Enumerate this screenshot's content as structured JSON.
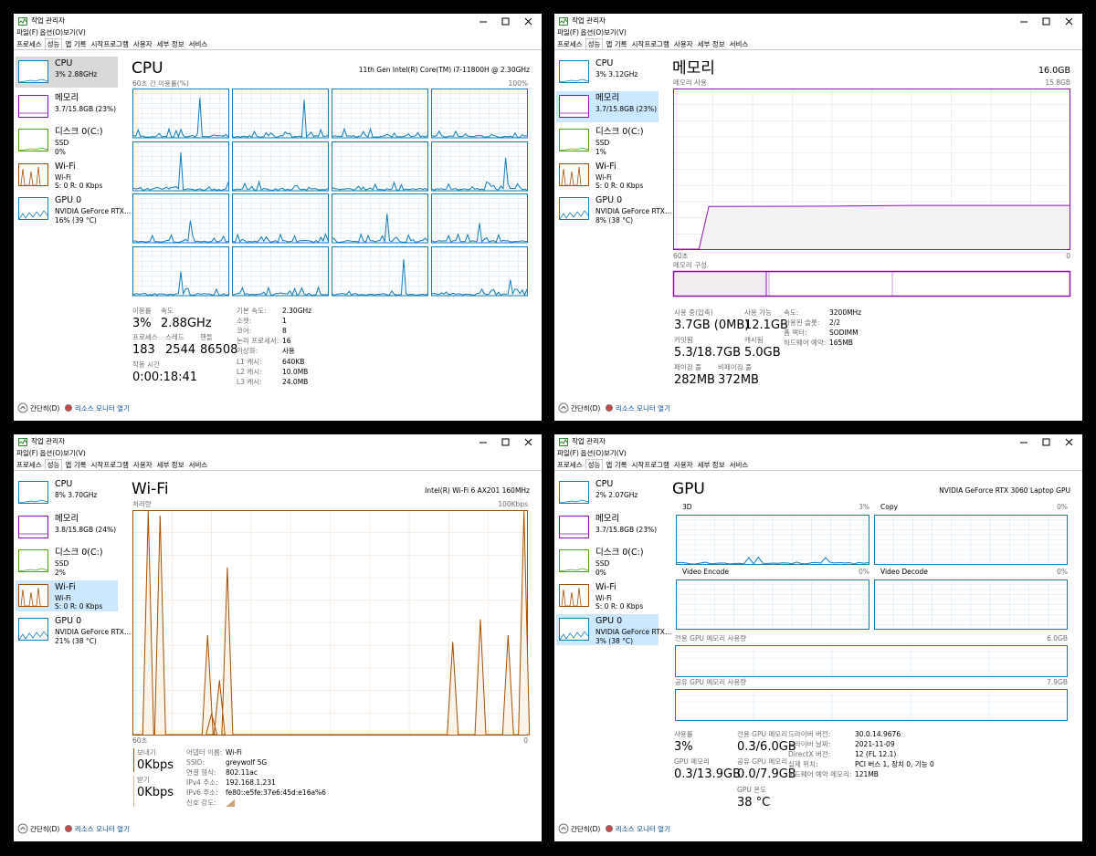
{
  "common": {
    "title": "작업 관리자",
    "menu": [
      "파일(F)",
      "옵션(O)",
      "보기(V)"
    ],
    "tabs": [
      "프로세스",
      "성능",
      "앱 기록",
      "시작프로그램",
      "사용자",
      "세부 정보",
      "서비스"
    ],
    "active_tab": 1,
    "footer": [
      "간단히(D)",
      "리소스 모니터 열기"
    ]
  },
  "windows": [
    {
      "selected": 0,
      "sidebar": [
        {
          "name": "CPU",
          "info": [
            "3% 2.88GHz"
          ]
        },
        {
          "name": "메모리",
          "info": [
            "3.7/15.8GB (23%)"
          ]
        },
        {
          "name": "디스크 0(C:)",
          "info": [
            "SSD",
            "0%"
          ]
        },
        {
          "name": "Wi-Fi",
          "info": [
            "Wi-Fi",
            "S: 0 R: 0 Kbps"
          ]
        },
        {
          "name": "GPU 0",
          "info": [
            "NVIDIA GeForce RTX...",
            "16% (39 °C)"
          ]
        }
      ],
      "heading": "CPU",
      "device": "11th Gen Intel(R) Core(TM) i7-11800H @ 2.30GHz",
      "graph_label": "60초 간 이용률(%)",
      "graph_max": "100%",
      "stats": [
        {
          "label": "이용률",
          "value": "3%"
        },
        {
          "label": "속도",
          "value": "2.88GHz"
        },
        {
          "label": "프로세스",
          "value": "183"
        },
        {
          "label": "스레드",
          "value": "2544"
        },
        {
          "label": "핸들",
          "value": "86508"
        },
        {
          "label": "작동 시간",
          "value": "0:00:18:41"
        }
      ],
      "details": [
        [
          "기본 속도:",
          "2.30GHz"
        ],
        [
          "소켓:",
          "1"
        ],
        [
          "코어:",
          "8"
        ],
        [
          "논리 프로세서:",
          "16"
        ],
        [
          "가상화:",
          "사용"
        ],
        [
          "L1 캐시:",
          "640KB"
        ],
        [
          "L2 캐시:",
          "10.0MB"
        ],
        [
          "L3 캐시:",
          "24.0MB"
        ]
      ]
    },
    {
      "selected": 1,
      "sidebar": [
        {
          "name": "CPU",
          "info": [
            "3% 3.12GHz"
          ]
        },
        {
          "name": "메모리",
          "info": [
            "3.7/15.8GB (23%)"
          ]
        },
        {
          "name": "디스크 0(C:)",
          "info": [
            "SSD",
            "1%"
          ]
        },
        {
          "name": "Wi-Fi",
          "info": [
            "Wi-Fi",
            "S: 0 R: 0 Kbps"
          ]
        },
        {
          "name": "GPU 0",
          "info": [
            "NVIDIA GeForce RTX...",
            "8% (38 °C)"
          ]
        }
      ],
      "heading": "메모리",
      "device": "16.0GB",
      "graph_label": "메모리 사용",
      "graph_max": "15.8GB",
      "graph_start": "60초",
      "graph_end": "0",
      "composition_label": "메모리 구성",
      "stats": [
        {
          "label": "사용 중(압축)",
          "value": "3.7GB (0MB)"
        },
        {
          "label": "사용 가능",
          "value": "12.1GB"
        },
        {
          "label": "커밋됨",
          "value": "5.3/18.7GB"
        },
        {
          "label": "캐시됨",
          "value": "5.0GB"
        },
        {
          "label": "페이징 풀",
          "value": "282MB"
        },
        {
          "label": "비페이징 풀",
          "value": "372MB"
        }
      ],
      "details": [
        [
          "속도:",
          "3200MHz"
        ],
        [
          "사용된 슬롯:",
          "2/2"
        ],
        [
          "폼 팩터:",
          "SODIMM"
        ],
        [
          "하드웨어 예약:",
          "165MB"
        ]
      ]
    },
    {
      "selected": 3,
      "sidebar": [
        {
          "name": "CPU",
          "info": [
            "8% 3.70GHz"
          ]
        },
        {
          "name": "메모리",
          "info": [
            "3.8/15.8GB (24%)"
          ]
        },
        {
          "name": "디스크 0(C:)",
          "info": [
            "SSD",
            "2%"
          ]
        },
        {
          "name": "Wi-Fi",
          "info": [
            "Wi-Fi",
            "S: 0 R: 0 Kbps"
          ]
        },
        {
          "name": "GPU 0",
          "info": [
            "NVIDIA GeForce RTX...",
            "21% (38 °C)"
          ]
        }
      ],
      "heading": "Wi-Fi",
      "device": "Intel(R) Wi-Fi 6 AX201 160MHz",
      "graph_label": "처리량",
      "graph_max": "100Kbps",
      "graph_start": "60초",
      "graph_end": "0",
      "stats": [
        {
          "label": "보내기",
          "value": "0Kbps"
        },
        {
          "label": "받기",
          "value": "0Kbps"
        }
      ],
      "details": [
        [
          "어댑터 이름:",
          "Wi-Fi"
        ],
        [
          "SSID:",
          "greywolf 5G"
        ],
        [
          "연결 형식:",
          "802.11ac"
        ],
        [
          "IPv4 주소:",
          "192.168.1.231"
        ],
        [
          "IPv6 주소:",
          "fe80::e5fe:37e6:45d:e16a%6"
        ],
        [
          "신호 강도:"
        ]
      ]
    },
    {
      "selected": 4,
      "sidebar": [
        {
          "name": "CPU",
          "info": [
            "2% 2.07GHz"
          ]
        },
        {
          "name": "메모리",
          "info": [
            "3.7/15.8GB (23%)"
          ]
        },
        {
          "name": "디스크 0(C:)",
          "info": [
            "SSD",
            "0%"
          ]
        },
        {
          "name": "Wi-Fi",
          "info": [
            "Wi-Fi",
            "S: 0 R: 0 Kbps"
          ]
        },
        {
          "name": "GPU 0",
          "info": [
            "NVIDIA GeForce RTX...",
            "3% (38 °C)"
          ]
        }
      ],
      "heading": "GPU",
      "device": "NVIDIA GeForce RTX 3060 Laptop GPU",
      "engines": [
        {
          "name": "3D",
          "value": "3%"
        },
        {
          "name": "Copy",
          "value": "0%"
        },
        {
          "name": "Video Encode",
          "value": "0%"
        },
        {
          "name": "Video Decode",
          "value": "0%"
        }
      ],
      "memory_graphs": [
        {
          "name": "전용 GPU 메모리 사용량",
          "value": "6.0GB"
        },
        {
          "name": "공유 GPU 메모리 사용량",
          "value": "7.9GB"
        }
      ],
      "stats": [
        {
          "label": "사용률",
          "value": "3%"
        },
        {
          "label": "전용 GPU 메모리",
          "value": "0.3/6.0GB"
        },
        {
          "label": "GPU 메모리",
          "value": "0.3/13.9GB"
        },
        {
          "label": "공유 GPU 메모리",
          "value": "0.0/7.9GB"
        },
        {
          "label": "GPU 온도",
          "value": "38 °C"
        }
      ],
      "details": [
        [
          "드라이버 버전:",
          "30.0.14.9676"
        ],
        [
          "드라이버 날짜:",
          "2021-11-09"
        ],
        [
          "DirectX 버전:",
          "12 (FL 12.1)"
        ],
        [
          "실제 위치:",
          "PCI 버스 1, 장치 0, 기능 0"
        ],
        [
          "하드웨어 예약 메모리:",
          "121MB"
        ]
      ]
    }
  ]
}
